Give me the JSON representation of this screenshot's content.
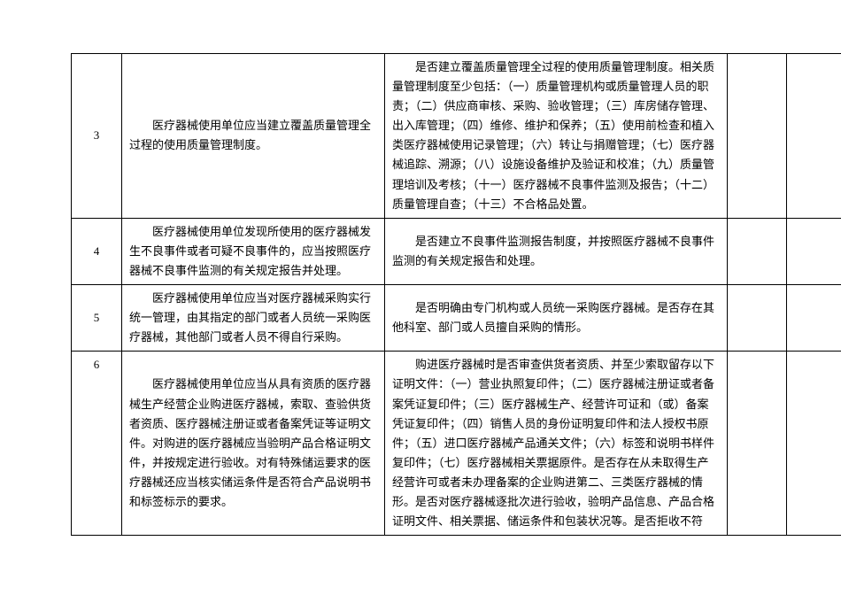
{
  "table": {
    "rows": [
      {
        "num": "3",
        "requirement": "医疗器械使用单位应当建立覆盖质量管理全过程的使用质量管理制度。",
        "check": "是否建立覆盖质量管理全过程的使用质量管理制度。相关质量管理制度至少包括：（一）质量管理机构或质量管理人员的职责；（二）供应商审核、采购、验收管理；（三）库房储存管理、出入库管理；（四）维修、维护和保养；（五）使用前检查和植入类医疗器械使用记录管理；（六）转让与捐赠管理；（七）医疗器械追踪、溯源；（八）设施设备维护及验证和校准；（九）质量管理培训及考核；（十一）医疗器械不良事件监测及报告；（十二）质量管理自查；（十三）不合格品处置。"
      },
      {
        "num": "4",
        "requirement": "医疗器械使用单位发现所使用的医疗器械发生不良事件或者可疑不良事件的，应当按照医疗器械不良事件监测的有关规定报告并处理。",
        "check": "是否建立不良事件监测报告制度，并按照医疗器械不良事件监测的有关规定报告和处理。"
      },
      {
        "num": "5",
        "requirement": "医疗器械使用单位应当对医疗器械采购实行统一管理，由其指定的部门或者人员统一采购医疗器械，其他部门或者人员不得自行采购。",
        "check": "是否明确由专门机构或人员统一采购医疗器械。是否存在其他科室、部门或人员擅自采购的情形。"
      },
      {
        "num": "6",
        "requirement": "医疗器械使用单位应当从具有资质的医疗器械生产经营企业购进医疗器械，索取、查验供货者资质、医疗器械注册证或者备案凭证等证明文件。对购进的医疗器械应当验明产品合格证明文件，并按规定进行验收。对有特殊储运要求的医疗器械还应当核实储运条件是否符合产品说明书和标签标示的要求。",
        "check": "购进医疗器械时是否审查供货者资质、并至少索取留存以下证明文件：（一）营业执照复印件；（二）医疗器械注册证或者备案凭证复印件；（三）医疗器械生产、经营许可证和（或）备案凭证复印件；（四）销售人员的身份证明复印件和法人授权书原件；（五）进口医疗器械产品通关文件；（六）标签和说明书样件复印件；（七）医疗器械相关票据原件。是否存在从未取得生产经营许可或者未办理备案的企业购进第二、三类医疗器械的情形。是否对医疗器械逐批次进行验收，验明产品信息、产品合格证明文件、相关票据、储运条件和包装状况等。是否拒收不符"
      }
    ]
  }
}
